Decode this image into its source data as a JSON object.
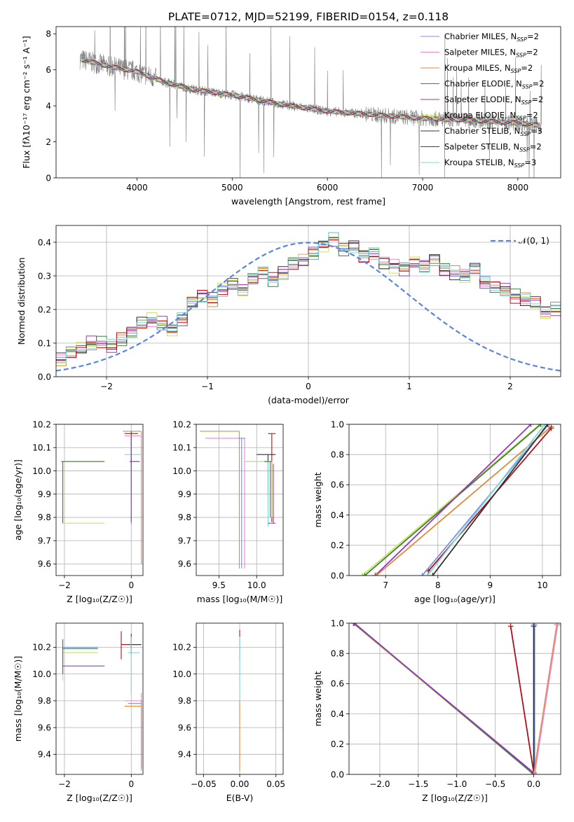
{
  "figure": {
    "title": "PLATE=0712, MJD=52199, FIBERID=0154, z=0.118"
  },
  "models": [
    {
      "name": "Chabrier MILES",
      "nssp": "2",
      "color": "#7b8fe0"
    },
    {
      "name": "Salpeter MILES",
      "nssp": "2",
      "color": "#e889c6"
    },
    {
      "name": "Kroupa MILES",
      "nssp": "2",
      "color": "#e08a3c"
    },
    {
      "name": "Chabrier ELODIE",
      "nssp": "2",
      "color": "#3f7f3f"
    },
    {
      "name": "Salpeter ELODIE",
      "nssp": "2",
      "color": "#9b35c4"
    },
    {
      "name": "Kroupa ELODIE",
      "nssp": "2",
      "color": "#c9e55a"
    },
    {
      "name": "Chabrier STELIB",
      "nssp": "3",
      "color": "#333333"
    },
    {
      "name": "Salpeter STELIB",
      "nssp": "2",
      "color": "#b0101a"
    },
    {
      "name": "Kroupa STELIB",
      "nssp": "3",
      "color": "#7fd8dc"
    }
  ],
  "chart_data": [
    {
      "id": "spectrum",
      "type": "line",
      "xlabel": "wavelength [Angstrom, rest frame]",
      "ylabel": "Flux [fλ10⁻¹⁷ erg cm⁻² s⁻¹ A⁻¹]",
      "xlim": [
        3150,
        8450
      ],
      "ylim": [
        0,
        8.4
      ],
      "xticks": [
        4000,
        5000,
        6000,
        7000,
        8000
      ],
      "yticks": [
        0,
        2,
        4,
        6,
        8
      ],
      "grid": false,
      "legend": "upper-right",
      "series_data_color": "#808080",
      "continuum_nodes": [
        [
          3400,
          6.6
        ],
        [
          3700,
          6.2
        ],
        [
          4000,
          5.9
        ],
        [
          4300,
          5.3
        ],
        [
          4600,
          4.9
        ],
        [
          5000,
          4.6
        ],
        [
          5500,
          4.1
        ],
        [
          6000,
          3.7
        ],
        [
          6500,
          3.5
        ],
        [
          7000,
          3.3
        ],
        [
          7500,
          3.2
        ],
        [
          8000,
          3.05
        ],
        [
          8250,
          2.9
        ]
      ]
    },
    {
      "id": "residuals",
      "type": "step",
      "xlabel": "(data-model)/error",
      "ylabel": "Normed distribution",
      "xlim": [
        -2.5,
        2.5
      ],
      "ylim": [
        0,
        0.45
      ],
      "xticks": [
        -2,
        -1,
        0,
        1,
        2
      ],
      "yticks": [
        0.0,
        0.1,
        0.2,
        0.3,
        0.4
      ],
      "grid": true,
      "legend": "upper-right",
      "reference_label": "𝒩(0, 1)",
      "reference_color": "#5b85d9",
      "bin_start": -2.5,
      "bin_width": 0.1,
      "base": [
        0.05,
        0.07,
        0.085,
        0.1,
        0.1,
        0.09,
        0.11,
        0.13,
        0.16,
        0.17,
        0.16,
        0.14,
        0.17,
        0.22,
        0.24,
        0.23,
        0.26,
        0.28,
        0.26,
        0.29,
        0.31,
        0.29,
        0.31,
        0.34,
        0.35,
        0.37,
        0.39,
        0.41,
        0.38,
        0.39,
        0.36,
        0.37,
        0.34,
        0.33,
        0.32,
        0.34,
        0.33,
        0.35,
        0.32,
        0.31,
        0.3,
        0.32,
        0.28,
        0.27,
        0.26,
        0.24,
        0.23,
        0.22,
        0.19,
        0.2,
        0.19,
        0.2,
        0.18,
        0.15,
        0.17,
        0.14,
        0.13,
        0.12,
        0.11,
        0.12,
        0.09,
        0.08,
        0.09,
        0.07,
        0.1,
        0.07,
        0.06,
        0.05,
        0.05,
        0.05,
        0.04,
        0.04,
        0.035,
        0.03,
        0.02
      ]
    },
    {
      "id": "age-vs-Z",
      "type": "errorbar",
      "xlabel": "Z [log₁₀(Z/Z☉)]",
      "ylabel": "age  [log₁₀(age/yr)]",
      "xlim": [
        -2.25,
        0.35
      ],
      "ylim": [
        9.55,
        10.2
      ],
      "xticks": [
        -2,
        0
      ],
      "yticks": [
        9.6,
        9.7,
        9.8,
        9.9,
        10.0,
        10.1,
        10.2
      ],
      "grid": true,
      "points": [
        {
          "m": 5,
          "x": -2.05,
          "y": 9.775,
          "xlo": -2.05,
          "xhi": -0.8,
          "ylo": 9.775,
          "yhi": 10.04
        },
        {
          "m": 5,
          "x": -2.05,
          "y": 10.04,
          "xlo": -2.05,
          "xhi": -0.8,
          "ylo": 9.775,
          "yhi": 10.04
        },
        {
          "m": 3,
          "x": -2.05,
          "y": 10.04,
          "xlo": -2.1,
          "xhi": -0.8,
          "ylo": 9.775,
          "yhi": 10.04
        },
        {
          "m": 8,
          "x": 0.0,
          "y": 10.07,
          "xlo": -0.2,
          "xhi": 0.28,
          "ylo": 9.9,
          "yhi": 10.17
        },
        {
          "m": 7,
          "x": 0.0,
          "y": 10.16,
          "xlo": -0.2,
          "xhi": 0.2,
          "ylo": 10.02,
          "yhi": 10.17
        },
        {
          "m": 2,
          "x": 0.3,
          "y": 10.17,
          "xlo": -0.25,
          "xhi": 0.3,
          "ylo": 9.6,
          "yhi": 10.17
        },
        {
          "m": 1,
          "x": 0.3,
          "y": 10.15,
          "xlo": -0.2,
          "xhi": 0.3,
          "ylo": 9.6,
          "yhi": 10.17
        },
        {
          "m": 0,
          "x": 0.0,
          "y": 10.04,
          "xlo": -0.05,
          "xhi": 0.25,
          "ylo": 9.77,
          "yhi": 10.14
        },
        {
          "m": 4,
          "x": 0.0,
          "y": 10.04,
          "xlo": -0.05,
          "xhi": 0.25,
          "ylo": 9.78,
          "yhi": 10.14
        }
      ]
    },
    {
      "id": "age-vs-mass",
      "type": "errorbar",
      "xlabel": "mass [log₁₀(M/M☉)]",
      "ylabel": "",
      "xlim": [
        9.2,
        10.35
      ],
      "ylim": [
        9.55,
        10.2
      ],
      "xticks": [
        9.5,
        10.0
      ],
      "yticks": [
        9.6,
        9.7,
        9.8,
        9.9,
        10.0,
        10.1,
        10.2
      ],
      "grid": true,
      "points": [
        {
          "m": 2,
          "x": 9.77,
          "y": 10.17,
          "xlo": 9.25,
          "xhi": 9.77,
          "ylo": 9.58,
          "yhi": 10.17
        },
        {
          "m": 1,
          "x": 9.84,
          "y": 10.14,
          "xlo": 9.32,
          "xhi": 9.84,
          "ylo": 9.58,
          "yhi": 10.14
        },
        {
          "m": 0,
          "x": 9.8,
          "y": 10.14,
          "xlo": 9.75,
          "xhi": 9.85,
          "ylo": 9.58,
          "yhi": 10.14
        },
        {
          "m": 7,
          "x": 10.2,
          "y": 10.16,
          "xlo": 10.15,
          "xhi": 10.25,
          "ylo": 9.78,
          "yhi": 10.16
        },
        {
          "m": 6,
          "x": 10.15,
          "y": 10.07,
          "xlo": 10.0,
          "xhi": 10.25,
          "ylo": 9.9,
          "yhi": 10.07
        },
        {
          "m": 8,
          "x": 10.15,
          "y": 10.04,
          "xlo": 9.85,
          "xhi": 10.15,
          "ylo": 9.76,
          "yhi": 10.04
        },
        {
          "m": 5,
          "x": 10.2,
          "y": 10.04,
          "xlo": 9.9,
          "xhi": 10.2,
          "ylo": 9.8,
          "yhi": 10.04
        },
        {
          "m": 3,
          "x": 10.18,
          "y": 10.04,
          "xlo": 10.1,
          "xhi": 10.2,
          "ylo": 9.8,
          "yhi": 10.04
        },
        {
          "m": 4,
          "x": 10.22,
          "y": 9.775,
          "xlo": 10.15,
          "xhi": 10.25,
          "ylo": 9.775,
          "yhi": 10.03
        }
      ]
    },
    {
      "id": "cumulative-age",
      "type": "line",
      "xlabel": "age  [log₁₀(age/yr)]",
      "ylabel": "mass weight",
      "xlim": [
        6.3,
        10.35
      ],
      "ylim": [
        0,
        1
      ],
      "xticks": [
        7,
        8,
        9,
        10
      ],
      "yticks": [
        0.0,
        0.2,
        0.4,
        0.6,
        0.8,
        1.0
      ],
      "grid": true,
      "lines": [
        {
          "m": 5,
          "points": [
            [
              6.55,
              0
            ],
            [
              9.95,
              1.0
            ]
          ]
        },
        {
          "m": 3,
          "points": [
            [
              6.6,
              0
            ],
            [
              9.97,
              1.0
            ]
          ]
        },
        {
          "m": 4,
          "points": [
            [
              6.8,
              0
            ],
            [
              9.78,
              1.0
            ]
          ]
        },
        {
          "m": 2,
          "points": [
            [
              6.82,
              0
            ],
            [
              10.17,
              0.985
            ]
          ]
        },
        {
          "m": 7,
          "points": [
            [
              7.82,
              0.03
            ],
            [
              10.17,
              0.975
            ]
          ]
        },
        {
          "m": 0,
          "points": [
            [
              7.7,
              0
            ],
            [
              10.12,
              1.0
            ]
          ]
        },
        {
          "m": 8,
          "points": [
            [
              7.8,
              0
            ],
            [
              10.05,
              1.0
            ]
          ]
        },
        {
          "m": 6,
          "points": [
            [
              7.9,
              0
            ],
            [
              10.1,
              1.0
            ]
          ]
        }
      ]
    },
    {
      "id": "mass-vs-Z",
      "type": "errorbar",
      "xlabel": "Z [log₁₀(Z/Z☉)]",
      "ylabel": "mass [log₁₀(M/M☉)]",
      "xlim": [
        -2.25,
        0.35
      ],
      "ylim": [
        9.25,
        10.38
      ],
      "xticks": [
        -2,
        0
      ],
      "yticks": [
        9.4,
        9.6,
        9.8,
        10.0,
        10.2
      ],
      "grid": true,
      "points": [
        {
          "m": 3,
          "x": -2.05,
          "y": 10.19,
          "xlo": -2.05,
          "xhi": -1.0,
          "ylo": 10.0,
          "yhi": 10.2
        },
        {
          "m": 0,
          "x": -2.05,
          "y": 10.2,
          "xlo": -2.05,
          "xhi": -1.0,
          "ylo": 10.1,
          "yhi": 10.26
        },
        {
          "m": 5,
          "x": -2.05,
          "y": 10.16,
          "xlo": -2.05,
          "xhi": -1.0,
          "ylo": 9.95,
          "yhi": 10.2
        },
        {
          "m": 4,
          "x": -2.05,
          "y": 10.06,
          "xlo": -2.05,
          "xhi": -0.8,
          "ylo": 10.0,
          "yhi": 10.26
        },
        {
          "m": 7,
          "x": -0.3,
          "y": 10.22,
          "xlo": -0.3,
          "xhi": 0.3,
          "ylo": 10.11,
          "yhi": 10.32
        },
        {
          "m": 6,
          "x": 0.0,
          "y": 10.22,
          "xlo": -0.1,
          "xhi": 0.3,
          "ylo": 10.15,
          "yhi": 10.3
        },
        {
          "m": 8,
          "x": 0.0,
          "y": 10.16,
          "xlo": -0.1,
          "xhi": 0.25,
          "ylo": 9.85,
          "yhi": 10.28
        },
        {
          "m": 1,
          "x": 0.3,
          "y": 9.8,
          "xlo": -0.2,
          "xhi": 0.3,
          "ylo": 9.3,
          "yhi": 9.86
        },
        {
          "m": 0,
          "x": 0.3,
          "y": 9.78,
          "xlo": -0.1,
          "xhi": 0.3,
          "ylo": 9.3,
          "yhi": 9.8
        },
        {
          "m": 2,
          "x": 0.3,
          "y": 9.76,
          "xlo": -0.2,
          "xhi": 0.3,
          "ylo": 9.28,
          "yhi": 9.8
        }
      ]
    },
    {
      "id": "mass-vs-EBV",
      "type": "errorbar",
      "xlabel": "E(B-V)",
      "ylabel": "",
      "xlim": [
        -0.06,
        0.06
      ],
      "ylim": [
        9.25,
        10.38
      ],
      "xticks": [
        -0.05,
        0.0,
        0.05
      ],
      "yticks": [
        9.4,
        9.6,
        9.8,
        10.0,
        10.2
      ],
      "grid": true,
      "points": [
        {
          "m": 7,
          "x": 0.0,
          "y": 10.22,
          "xlo": 0.0,
          "xhi": 0.0,
          "ylo": 10.1,
          "yhi": 10.33
        },
        {
          "m": 5,
          "x": 0.0,
          "y": 10.16,
          "xlo": 0.0,
          "xhi": 0.0,
          "ylo": 9.9,
          "yhi": 10.25
        },
        {
          "m": 8,
          "x": 0.0,
          "y": 10.1,
          "xlo": 0.0,
          "xhi": 0.0,
          "ylo": 9.8,
          "yhi": 10.28
        },
        {
          "m": 2,
          "x": 0.0,
          "y": 9.76,
          "xlo": 0.0,
          "xhi": 0.0,
          "ylo": 9.28,
          "yhi": 9.8
        }
      ]
    },
    {
      "id": "cumulative-Z",
      "type": "line",
      "xlabel": "Z [log₁₀(Z/Z☉)]",
      "ylabel": "mass weight",
      "xlim": [
        -2.4,
        0.35
      ],
      "ylim": [
        0,
        1
      ],
      "xticks": [
        -2.0,
        -1.5,
        -1.0,
        -0.5,
        0.0
      ],
      "yticks": [
        0.0,
        0.2,
        0.4,
        0.6,
        0.8,
        1.0
      ],
      "grid": true,
      "lines": [
        {
          "m": 5,
          "points": [
            [
              -2.35,
              1.0
            ],
            [
              0.0,
              0.0
            ]
          ]
        },
        {
          "m": 3,
          "points": [
            [
              -2.33,
              1.0
            ],
            [
              0.0,
              0.0
            ]
          ]
        },
        {
          "m": 4,
          "points": [
            [
              -2.34,
              1.0
            ],
            [
              0.0,
              0.01
            ]
          ]
        },
        {
          "m": 7,
          "points": [
            [
              -0.3,
              0.98
            ],
            [
              0.0,
              0.01
            ]
          ]
        },
        {
          "m": 8,
          "points": [
            [
              0.0,
              0.99
            ],
            [
              0.0,
              0.0
            ]
          ]
        },
        {
          "m": 0,
          "points": [
            [
              0.01,
              0.99
            ],
            [
              0.01,
              0.0
            ]
          ]
        },
        {
          "m": 6,
          "points": [
            [
              0.0,
              0.98
            ],
            [
              0.0,
              0.0
            ]
          ]
        },
        {
          "m": 2,
          "points": [
            [
              0.3,
              0.99
            ],
            [
              0.0,
              0.0
            ]
          ]
        },
        {
          "m": 1,
          "points": [
            [
              0.31,
              0.99
            ],
            [
              0.01,
              0.0
            ]
          ]
        }
      ]
    }
  ]
}
